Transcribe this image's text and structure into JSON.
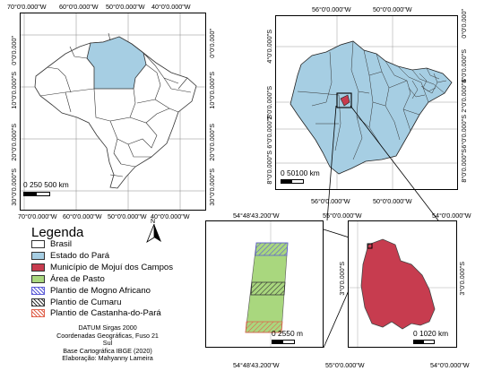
{
  "maps": {
    "brazil": {
      "top_ticks": [
        "70°0'0.000\"W",
        "60°0'0.000\"W",
        "50°0'0.000\"W",
        "40°0'0.000\"W"
      ],
      "bottom_ticks": [
        "70°0'0.000\"W",
        "60°0'0.000\"W",
        "50°0'0.000\"W",
        "40°0'0.000\"W"
      ],
      "left_ticks": [
        "0°0'0.000\"",
        "10°0'0.000\"S",
        "20°0'0.000\"S",
        "30°0'0.000\"S"
      ],
      "right_ticks": [
        "0°0'0.000\"",
        "10°0'0.000\"S",
        "20°0'0.000\"S",
        "30°0'0.000\"S"
      ],
      "scale_label": "0 250 500 km"
    },
    "para": {
      "top_ticks": [
        "56°0'0.000\"W",
        "50°0'0.000\"W"
      ],
      "bottom_ticks": [
        "56°0'0.000\"W",
        "50°0'0.000\"W"
      ],
      "left_ticks": [
        "4°0'0.000\"S",
        "2°0'0.000\"S",
        "6°0'0.000\"S",
        "8°0'0.000\"S"
      ],
      "right_ticks": [
        "0°0'0.000\"",
        "2°0'0.000\"S",
        "4°0'0.000\"S",
        "6°0'0.000\"S",
        "8°0'0.000\"S"
      ],
      "scale_label": "0 50100 km"
    },
    "farm": {
      "top_tick": "54°48'43.200\"W",
      "bottom_tick": "54°48'43.200\"W",
      "scale_label": "0 2550 m"
    },
    "mojui": {
      "top_ticks": [
        "55°0'0.000\"W",
        "54°0'0.000\"W"
      ],
      "bottom_ticks": [
        "55°0'0.000\"W",
        "54°0'0.000\"W"
      ],
      "left_tick": "3°0'0.000\"S",
      "right_tick": "3°0'0.000\"S",
      "scale_label": "0 1020 km"
    }
  },
  "north_arrow": "N",
  "legend": {
    "title": "Legenda",
    "items": [
      {
        "label": "Brasil",
        "color": "#ffffff",
        "pattern": "none"
      },
      {
        "label": "Estado do Pará",
        "color": "#a6cee3",
        "pattern": "none"
      },
      {
        "label": "Município de Mojuí dos Campos",
        "color": "#c73c4f",
        "pattern": "none"
      },
      {
        "label": "Área de Pasto",
        "color": "#a9d77e",
        "pattern": "none"
      },
      {
        "label": "Plantio de Mogno Africano",
        "color": "#5a5ad6",
        "pattern": "hatch"
      },
      {
        "label": "Plantio de Cumaru",
        "color": "#333333",
        "pattern": "hatch"
      },
      {
        "label": "Plantio de Castanha-do-Pará",
        "color": "#e0604a",
        "pattern": "hatch"
      }
    ]
  },
  "credits": [
    "DATUM Sirgas 2000",
    "Coordenadas Geográficas, Fuso 21 Sul",
    "Base Cartográfica IBGE (2020)",
    "Elaboração: Mahyanny Lameira"
  ]
}
